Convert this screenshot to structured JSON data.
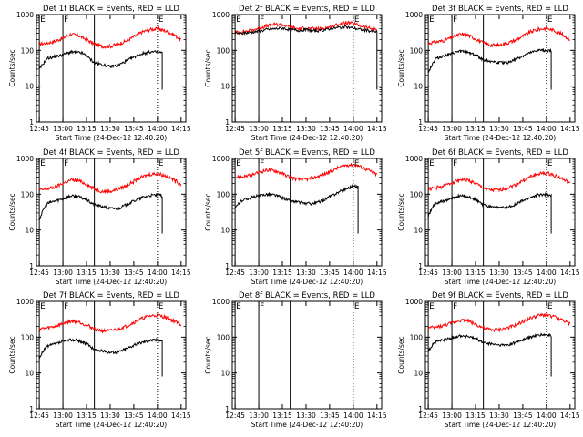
{
  "chart_data": {
    "type": "line",
    "scale": "log",
    "x_ticks": [
      "12:45",
      "13:00",
      "13:15",
      "13:30",
      "13:45",
      "14:00",
      "14:15"
    ],
    "y_ticks": [
      "1",
      "10",
      "100",
      "1000"
    ],
    "ylim": [
      1,
      1000
    ],
    "ylabel": "Counts/sec",
    "xlabel": "Start Time (24-Dec-12 12:40:20)",
    "series_colors": {
      "events": "#000000",
      "lld": "#ff0000"
    },
    "marker_labels": [
      "E",
      "F",
      "E"
    ],
    "panels": [
      {
        "title": "Det 1f BLACK = Events, RED = LLD",
        "black": [
          [
            12.75,
            30
          ],
          [
            12.8,
            45
          ],
          [
            12.833,
            60
          ],
          [
            12.9,
            65
          ],
          [
            13.0,
            75
          ],
          [
            13.083,
            90
          ],
          [
            13.2,
            85
          ],
          [
            13.25,
            70
          ],
          [
            13.333,
            45
          ],
          [
            13.5,
            35
          ],
          [
            13.583,
            38
          ],
          [
            13.667,
            50
          ],
          [
            13.75,
            65
          ],
          [
            13.833,
            80
          ],
          [
            13.917,
            90
          ],
          [
            14.0,
            90
          ],
          [
            14.05,
            85
          ]
        ],
        "red": [
          [
            12.75,
            150
          ],
          [
            12.833,
            160
          ],
          [
            12.917,
            180
          ],
          [
            13.0,
            220
          ],
          [
            13.083,
            280
          ],
          [
            13.167,
            260
          ],
          [
            13.25,
            200
          ],
          [
            13.333,
            150
          ],
          [
            13.417,
            130
          ],
          [
            13.5,
            130
          ],
          [
            13.583,
            150
          ],
          [
            13.667,
            180
          ],
          [
            13.75,
            240
          ],
          [
            13.833,
            320
          ],
          [
            13.917,
            380
          ],
          [
            14.0,
            400
          ],
          [
            14.083,
            350
          ],
          [
            14.167,
            280
          ],
          [
            14.25,
            200
          ]
        ]
      },
      {
        "title": "Det 2f BLACK = Events, RED = LLD",
        "black": [
          [
            12.75,
            300
          ],
          [
            12.833,
            300
          ],
          [
            12.917,
            320
          ],
          [
            13.0,
            340
          ],
          [
            13.083,
            380
          ],
          [
            13.167,
            400
          ],
          [
            13.25,
            420
          ],
          [
            13.333,
            380
          ],
          [
            13.417,
            360
          ],
          [
            13.5,
            380
          ],
          [
            13.583,
            350
          ],
          [
            13.667,
            360
          ],
          [
            13.75,
            400
          ],
          [
            13.833,
            430
          ],
          [
            13.917,
            450
          ],
          [
            14.0,
            420
          ],
          [
            14.083,
            380
          ],
          [
            14.167,
            350
          ],
          [
            14.25,
            330
          ]
        ],
        "red": [
          [
            12.75,
            320
          ],
          [
            12.833,
            330
          ],
          [
            12.917,
            360
          ],
          [
            13.0,
            420
          ],
          [
            13.083,
            480
          ],
          [
            13.167,
            530
          ],
          [
            13.25,
            520
          ],
          [
            13.333,
            450
          ],
          [
            13.417,
            400
          ],
          [
            13.5,
            420
          ],
          [
            13.583,
            400
          ],
          [
            13.667,
            400
          ],
          [
            13.75,
            450
          ],
          [
            13.833,
            520
          ],
          [
            13.917,
            600
          ],
          [
            14.0,
            560
          ],
          [
            14.083,
            480
          ],
          [
            14.167,
            420
          ],
          [
            14.25,
            380
          ]
        ]
      },
      {
        "title": "Det 3f BLACK = Events, RED = LLD",
        "black": [
          [
            12.75,
            25
          ],
          [
            12.8,
            45
          ],
          [
            12.833,
            60
          ],
          [
            12.917,
            70
          ],
          [
            13.0,
            80
          ],
          [
            13.083,
            95
          ],
          [
            13.167,
            90
          ],
          [
            13.25,
            75
          ],
          [
            13.333,
            55
          ],
          [
            13.5,
            45
          ],
          [
            13.583,
            45
          ],
          [
            13.667,
            55
          ],
          [
            13.75,
            70
          ],
          [
            13.833,
            85
          ],
          [
            13.917,
            100
          ],
          [
            14.0,
            100
          ],
          [
            14.05,
            95
          ]
        ],
        "red": [
          [
            12.75,
            160
          ],
          [
            12.833,
            170
          ],
          [
            12.917,
            190
          ],
          [
            13.0,
            230
          ],
          [
            13.083,
            280
          ],
          [
            13.167,
            270
          ],
          [
            13.25,
            210
          ],
          [
            13.333,
            160
          ],
          [
            13.417,
            140
          ],
          [
            13.5,
            140
          ],
          [
            13.583,
            160
          ],
          [
            13.667,
            190
          ],
          [
            13.75,
            250
          ],
          [
            13.833,
            330
          ],
          [
            13.917,
            390
          ],
          [
            14.0,
            410
          ],
          [
            14.083,
            360
          ],
          [
            14.167,
            280
          ],
          [
            14.25,
            200
          ]
        ]
      },
      {
        "title": "Det 4f BLACK = Events, RED = LLD",
        "black": [
          [
            12.75,
            20
          ],
          [
            12.8,
            40
          ],
          [
            12.833,
            55
          ],
          [
            12.917,
            65
          ],
          [
            13.0,
            75
          ],
          [
            13.083,
            90
          ],
          [
            13.167,
            85
          ],
          [
            13.25,
            70
          ],
          [
            13.333,
            50
          ],
          [
            13.5,
            40
          ],
          [
            13.583,
            40
          ],
          [
            13.667,
            50
          ],
          [
            13.75,
            65
          ],
          [
            13.833,
            80
          ],
          [
            13.917,
            92
          ],
          [
            14.0,
            95
          ],
          [
            14.05,
            90
          ]
        ],
        "red": [
          [
            12.75,
            130
          ],
          [
            12.833,
            140
          ],
          [
            12.917,
            160
          ],
          [
            13.0,
            200
          ],
          [
            13.083,
            250
          ],
          [
            13.167,
            240
          ],
          [
            13.25,
            190
          ],
          [
            13.333,
            140
          ],
          [
            13.417,
            120
          ],
          [
            13.5,
            120
          ],
          [
            13.583,
            140
          ],
          [
            13.667,
            170
          ],
          [
            13.75,
            230
          ],
          [
            13.833,
            300
          ],
          [
            13.917,
            360
          ],
          [
            14.0,
            380
          ],
          [
            14.083,
            330
          ],
          [
            14.167,
            260
          ],
          [
            14.25,
            190
          ]
        ]
      },
      {
        "title": "Det 5f BLACK = Events, RED = LLD",
        "black": [
          [
            12.75,
            40
          ],
          [
            12.8,
            60
          ],
          [
            12.833,
            70
          ],
          [
            12.917,
            80
          ],
          [
            13.0,
            90
          ],
          [
            13.083,
            100
          ],
          [
            13.167,
            95
          ],
          [
            13.25,
            80
          ],
          [
            13.333,
            65
          ],
          [
            13.5,
            55
          ],
          [
            13.583,
            55
          ],
          [
            13.667,
            65
          ],
          [
            13.75,
            85
          ],
          [
            13.833,
            110
          ],
          [
            13.917,
            140
          ],
          [
            14.0,
            170
          ],
          [
            14.05,
            160
          ]
        ],
        "red": [
          [
            12.75,
            300
          ],
          [
            12.833,
            310
          ],
          [
            12.917,
            340
          ],
          [
            13.0,
            400
          ],
          [
            13.083,
            480
          ],
          [
            13.167,
            460
          ],
          [
            13.25,
            380
          ],
          [
            13.333,
            300
          ],
          [
            13.417,
            260
          ],
          [
            13.5,
            260
          ],
          [
            13.583,
            290
          ],
          [
            13.667,
            340
          ],
          [
            13.75,
            420
          ],
          [
            13.833,
            540
          ],
          [
            13.917,
            640
          ],
          [
            14.0,
            680
          ],
          [
            14.083,
            580
          ],
          [
            14.167,
            460
          ],
          [
            14.25,
            350
          ]
        ]
      },
      {
        "title": "Det 6f BLACK = Events, RED = LLD",
        "black": [
          [
            12.75,
            25
          ],
          [
            12.8,
            45
          ],
          [
            12.833,
            55
          ],
          [
            12.917,
            65
          ],
          [
            13.0,
            75
          ],
          [
            13.083,
            90
          ],
          [
            13.167,
            85
          ],
          [
            13.25,
            70
          ],
          [
            13.333,
            50
          ],
          [
            13.5,
            42
          ],
          [
            13.583,
            42
          ],
          [
            13.667,
            52
          ],
          [
            13.75,
            66
          ],
          [
            13.833,
            82
          ],
          [
            13.917,
            96
          ],
          [
            14.0,
            98
          ],
          [
            14.05,
            92
          ]
        ],
        "red": [
          [
            12.75,
            140
          ],
          [
            12.833,
            150
          ],
          [
            12.917,
            170
          ],
          [
            13.0,
            210
          ],
          [
            13.083,
            260
          ],
          [
            13.167,
            250
          ],
          [
            13.25,
            200
          ],
          [
            13.333,
            150
          ],
          [
            13.417,
            130
          ],
          [
            13.5,
            130
          ],
          [
            13.583,
            150
          ],
          [
            13.667,
            180
          ],
          [
            13.75,
            240
          ],
          [
            13.833,
            310
          ],
          [
            13.917,
            370
          ],
          [
            14.0,
            390
          ],
          [
            14.083,
            340
          ],
          [
            14.167,
            270
          ],
          [
            14.25,
            200
          ]
        ]
      },
      {
        "title": "Det 7f BLACK = Events, RED = LLD",
        "black": [
          [
            12.75,
            25
          ],
          [
            12.8,
            45
          ],
          [
            12.833,
            55
          ],
          [
            12.917,
            65
          ],
          [
            13.0,
            75
          ],
          [
            13.083,
            85
          ],
          [
            13.167,
            80
          ],
          [
            13.25,
            65
          ],
          [
            13.333,
            45
          ],
          [
            13.5,
            38
          ],
          [
            13.583,
            38
          ],
          [
            13.667,
            48
          ],
          [
            13.75,
            60
          ],
          [
            13.833,
            72
          ],
          [
            13.917,
            82
          ],
          [
            14.0,
            85
          ],
          [
            14.05,
            80
          ]
        ],
        "red": [
          [
            12.75,
            170
          ],
          [
            12.833,
            180
          ],
          [
            12.917,
            200
          ],
          [
            13.0,
            240
          ],
          [
            13.083,
            280
          ],
          [
            13.167,
            270
          ],
          [
            13.25,
            220
          ],
          [
            13.333,
            170
          ],
          [
            13.417,
            150
          ],
          [
            13.5,
            150
          ],
          [
            13.583,
            170
          ],
          [
            13.667,
            200
          ],
          [
            13.75,
            260
          ],
          [
            13.833,
            330
          ],
          [
            13.917,
            390
          ],
          [
            14.0,
            410
          ],
          [
            14.083,
            360
          ],
          [
            14.167,
            290
          ],
          [
            14.25,
            220
          ]
        ]
      },
      {
        "title": "Det 8f BLACK = Events, RED = LLD",
        "black": [],
        "red": []
      },
      {
        "title": "Det 9f BLACK = Events, RED = LLD",
        "black": [
          [
            12.75,
            40
          ],
          [
            12.8,
            65
          ],
          [
            12.833,
            75
          ],
          [
            12.917,
            85
          ],
          [
            13.0,
            95
          ],
          [
            13.083,
            110
          ],
          [
            13.167,
            105
          ],
          [
            13.25,
            90
          ],
          [
            13.333,
            70
          ],
          [
            13.5,
            60
          ],
          [
            13.583,
            60
          ],
          [
            13.667,
            70
          ],
          [
            13.75,
            85
          ],
          [
            13.833,
            100
          ],
          [
            13.917,
            115
          ],
          [
            14.0,
            115
          ],
          [
            14.05,
            110
          ]
        ],
        "red": [
          [
            12.75,
            180
          ],
          [
            12.833,
            190
          ],
          [
            12.917,
            210
          ],
          [
            13.0,
            250
          ],
          [
            13.083,
            300
          ],
          [
            13.167,
            290
          ],
          [
            13.25,
            230
          ],
          [
            13.333,
            180
          ],
          [
            13.417,
            160
          ],
          [
            13.5,
            160
          ],
          [
            13.583,
            180
          ],
          [
            13.667,
            210
          ],
          [
            13.75,
            270
          ],
          [
            13.833,
            340
          ],
          [
            13.917,
            400
          ],
          [
            14.0,
            420
          ],
          [
            14.083,
            370
          ],
          [
            14.167,
            300
          ],
          [
            14.25,
            230
          ]
        ]
      }
    ]
  }
}
